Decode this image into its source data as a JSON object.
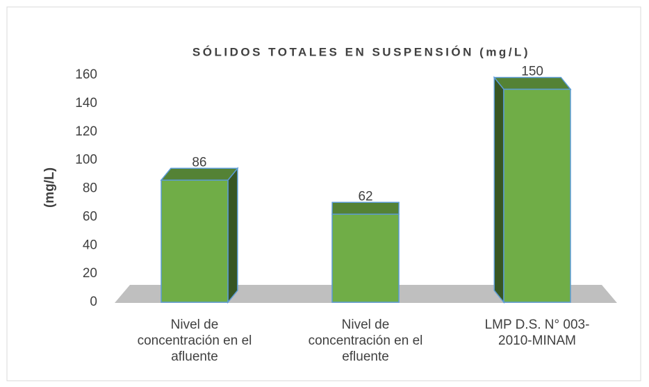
{
  "chart_data": {
    "type": "bar3d",
    "title": "SÓLIDOS TOTALES EN SUSPENSIÓN (mg/L)",
    "y_label": "(mg/L)",
    "categories": [
      "Nivel de concentración en el afluente",
      "Nivel de concentración en el efluente",
      "LMP D.S. N° 003-2010-MINAM"
    ],
    "values": [
      86,
      62,
      150
    ],
    "color": "#70ad47",
    "ylim": [
      0,
      160
    ],
    "yticks": [
      0,
      20,
      40,
      60,
      80,
      100,
      120,
      140,
      160
    ]
  }
}
